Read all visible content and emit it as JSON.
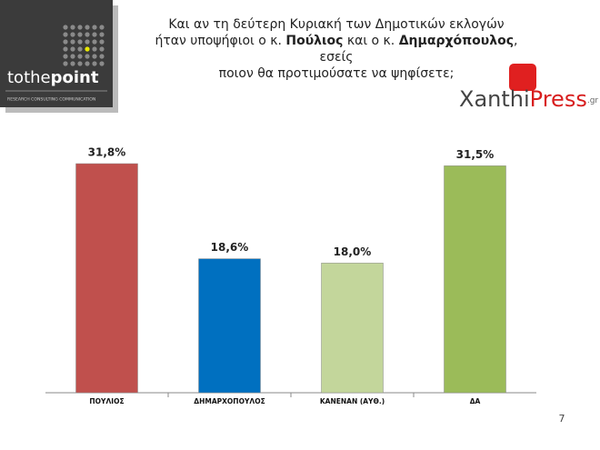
{
  "header": {
    "title_lines": [
      [
        "Και αν τη δεύτερη Κυριακή των Δημοτικών εκλογών"
      ],
      [
        "ήταν υποψήφιοι ο κ. ",
        "Πούλιος",
        " και ο κ. ",
        "Δημαρχόπουλος",
        ", εσείς"
      ],
      [
        "ποιον θα προτιμούσατε να ψηφίσετε;"
      ]
    ],
    "logo": {
      "name_parts": [
        "tothe",
        "point"
      ],
      "tagline": "RESEARCH CONSULTING COMMUNICATION"
    },
    "partner": {
      "parts": [
        "Xanthi",
        "Press",
        ".gr"
      ]
    }
  },
  "chart_data": {
    "type": "bar",
    "categories": [
      "ΠΟΥΛΙΟΣ",
      "ΔΗΜΑΡΧΟΠΟΥΛΟΣ",
      "ΚΑΝΕΝΑΝ (ΑΥΘ.)",
      "ΔΑ"
    ],
    "values": [
      31.8,
      18.6,
      18.0,
      31.5
    ],
    "value_labels": [
      "31,8%",
      "18,6%",
      "18,0%",
      "31,5%"
    ],
    "colors": [
      "#c0504d",
      "#0070c0",
      "#c3d69b",
      "#9bbb59"
    ]
  },
  "footer": {
    "page_number": "7"
  }
}
